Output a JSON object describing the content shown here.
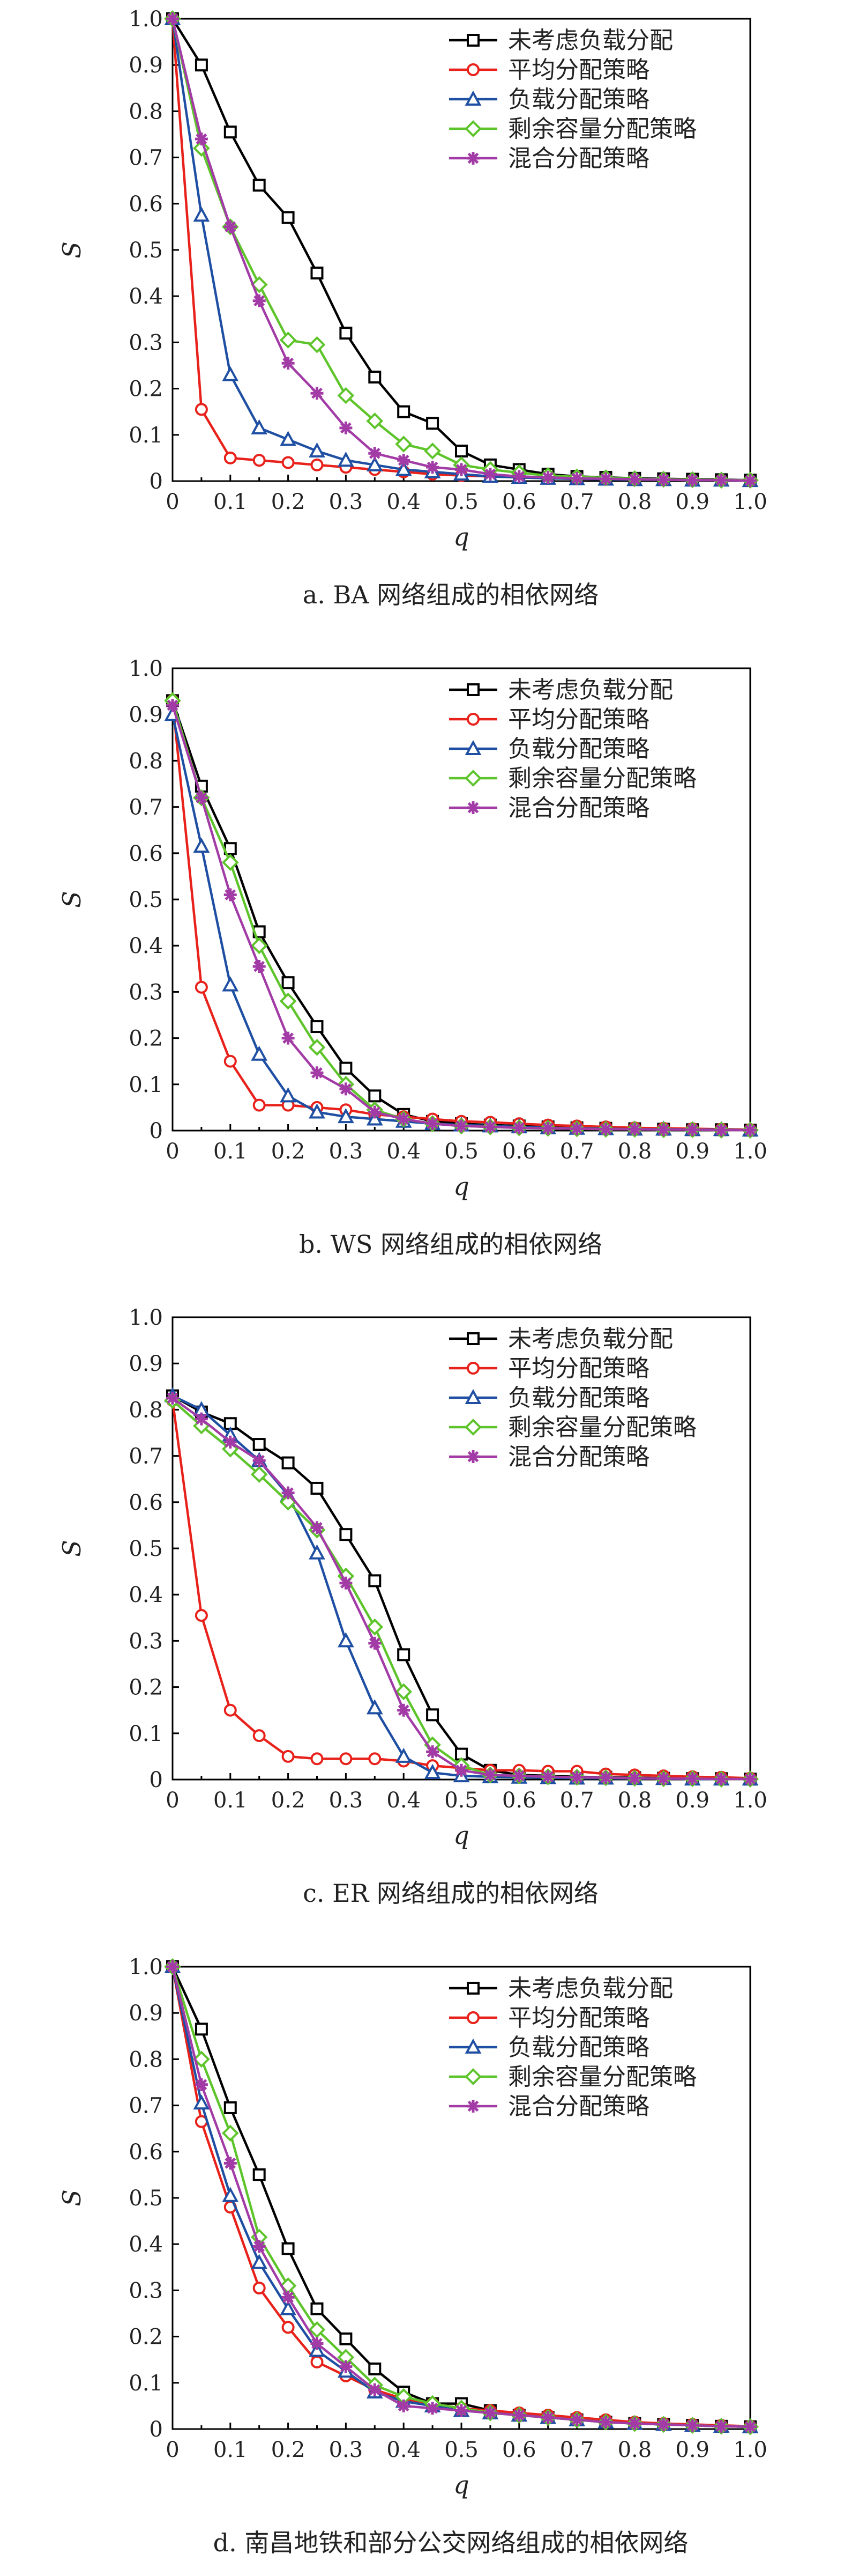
{
  "legend_labels": [
    "未考虑负载分配",
    "平均分配策略",
    "负载分配策略",
    "剩余容量分配策略",
    "混合分配策略"
  ],
  "series_styles": [
    {
      "color": "#000000",
      "marker": "square"
    },
    {
      "color": "#e8211b",
      "marker": "circle"
    },
    {
      "color": "#1f4fa3",
      "marker": "triangle"
    },
    {
      "color": "#5ec42b",
      "marker": "diamond"
    },
    {
      "color": "#a23ba6",
      "marker": "star"
    }
  ],
  "chart_data": [
    {
      "type": "line",
      "caption": "a. BA 网络组成的相依网络",
      "xlabel": "q",
      "ylabel": "S",
      "xlim": [
        0,
        1.0
      ],
      "ylim": [
        0,
        1.0
      ],
      "x_ticks": [
        "0",
        "0.1",
        "0.2",
        "0.3",
        "0.4",
        "0.5",
        "0.6",
        "0.7",
        "0.8",
        "0.9",
        "1.0"
      ],
      "y_ticks": [
        "0",
        "0.1",
        "0.2",
        "0.3",
        "0.4",
        "0.5",
        "0.6",
        "0.7",
        "0.8",
        "0.9",
        "1.0"
      ],
      "x": [
        0,
        0.05,
        0.1,
        0.15,
        0.2,
        0.25,
        0.3,
        0.35,
        0.4,
        0.45,
        0.5,
        0.55,
        0.6,
        0.65,
        0.7,
        0.75,
        0.8,
        0.85,
        0.9,
        0.95,
        1.0
      ],
      "series": [
        {
          "name": "未考虑负载分配",
          "values": [
            1.0,
            0.9,
            0.755,
            0.64,
            0.57,
            0.45,
            0.32,
            0.225,
            0.15,
            0.125,
            0.065,
            0.035,
            0.025,
            0.015,
            0.01,
            0.008,
            0.006,
            0.005,
            0.004,
            0.003,
            0.002
          ]
        },
        {
          "name": "平均分配策略",
          "values": [
            1.0,
            0.155,
            0.05,
            0.045,
            0.04,
            0.035,
            0.03,
            0.025,
            0.02,
            0.015,
            0.012,
            0.01,
            0.008,
            0.006,
            0.005,
            0.004,
            0.003,
            0.003,
            0.002,
            0.002,
            0.001
          ]
        },
        {
          "name": "负载分配策略",
          "values": [
            1.0,
            0.575,
            0.23,
            0.115,
            0.09,
            0.065,
            0.045,
            0.035,
            0.025,
            0.02,
            0.015,
            0.01,
            0.008,
            0.006,
            0.005,
            0.004,
            0.003,
            0.003,
            0.002,
            0.002,
            0.001
          ]
        },
        {
          "name": "剩余容量分配策略",
          "values": [
            1.0,
            0.72,
            0.55,
            0.425,
            0.305,
            0.295,
            0.185,
            0.13,
            0.08,
            0.065,
            0.035,
            0.025,
            0.018,
            0.012,
            0.009,
            0.007,
            0.005,
            0.004,
            0.003,
            0.002,
            0.002
          ]
        },
        {
          "name": "混合分配策略",
          "values": [
            1.0,
            0.74,
            0.55,
            0.39,
            0.255,
            0.19,
            0.115,
            0.06,
            0.045,
            0.03,
            0.025,
            0.015,
            0.01,
            0.008,
            0.006,
            0.005,
            0.004,
            0.003,
            0.002,
            0.002,
            0.001
          ]
        }
      ]
    },
    {
      "type": "line",
      "caption": "b. WS 网络组成的相依网络",
      "xlabel": "q",
      "ylabel": "S",
      "xlim": [
        0,
        1.0
      ],
      "ylim": [
        0,
        1.0
      ],
      "x_ticks": [
        "0",
        "0.1",
        "0.2",
        "0.3",
        "0.4",
        "0.5",
        "0.6",
        "0.7",
        "0.8",
        "0.9",
        "1.0"
      ],
      "y_ticks": [
        "0",
        "0.1",
        "0.2",
        "0.3",
        "0.4",
        "0.5",
        "0.6",
        "0.7",
        "0.8",
        "0.9",
        "1.0"
      ],
      "x": [
        0,
        0.05,
        0.1,
        0.15,
        0.2,
        0.25,
        0.3,
        0.35,
        0.4,
        0.45,
        0.5,
        0.55,
        0.6,
        0.65,
        0.7,
        0.75,
        0.8,
        0.85,
        0.9,
        0.95,
        1.0
      ],
      "series": [
        {
          "name": "未考虑负载分配",
          "values": [
            0.93,
            0.745,
            0.61,
            0.43,
            0.32,
            0.225,
            0.135,
            0.075,
            0.035,
            0.02,
            0.015,
            0.012,
            0.01,
            0.008,
            0.006,
            0.005,
            0.004,
            0.003,
            0.002,
            0.002,
            0.001
          ]
        },
        {
          "name": "平均分配策略",
          "values": [
            0.93,
            0.31,
            0.15,
            0.055,
            0.055,
            0.05,
            0.045,
            0.035,
            0.03,
            0.025,
            0.02,
            0.018,
            0.015,
            0.012,
            0.01,
            0.008,
            0.006,
            0.005,
            0.004,
            0.003,
            0.002
          ]
        },
        {
          "name": "负载分配策略",
          "values": [
            0.9,
            0.615,
            0.315,
            0.165,
            0.075,
            0.04,
            0.03,
            0.025,
            0.02,
            0.015,
            0.012,
            0.01,
            0.008,
            0.006,
            0.005,
            0.004,
            0.003,
            0.003,
            0.002,
            0.002,
            0.001
          ]
        },
        {
          "name": "剩余容量分配策略",
          "values": [
            0.93,
            0.72,
            0.58,
            0.4,
            0.28,
            0.18,
            0.1,
            0.045,
            0.025,
            0.015,
            0.01,
            0.008,
            0.006,
            0.005,
            0.004,
            0.003,
            0.003,
            0.002,
            0.002,
            0.001,
            0.001
          ]
        },
        {
          "name": "混合分配策略",
          "values": [
            0.92,
            0.72,
            0.51,
            0.355,
            0.2,
            0.125,
            0.09,
            0.04,
            0.025,
            0.015,
            0.01,
            0.008,
            0.006,
            0.005,
            0.004,
            0.003,
            0.003,
            0.002,
            0.002,
            0.001,
            0.001
          ]
        }
      ]
    },
    {
      "type": "line",
      "caption": "c. ER 网络组成的相依网络",
      "xlabel": "q",
      "ylabel": "S",
      "xlim": [
        0,
        1.0
      ],
      "ylim": [
        0,
        1.0
      ],
      "x_ticks": [
        "0",
        "0.1",
        "0.2",
        "0.3",
        "0.4",
        "0.5",
        "0.6",
        "0.7",
        "0.8",
        "0.9",
        "1.0"
      ],
      "y_ticks": [
        "0",
        "0.1",
        "0.2",
        "0.3",
        "0.4",
        "0.5",
        "0.6",
        "0.7",
        "0.8",
        "0.9",
        "1.0"
      ],
      "x": [
        0,
        0.05,
        0.1,
        0.15,
        0.2,
        0.25,
        0.3,
        0.35,
        0.4,
        0.45,
        0.5,
        0.55,
        0.6,
        0.65,
        0.7,
        0.75,
        0.8,
        0.85,
        0.9,
        0.95,
        1.0
      ],
      "series": [
        {
          "name": "未考虑负载分配",
          "values": [
            0.83,
            0.795,
            0.77,
            0.725,
            0.685,
            0.63,
            0.53,
            0.43,
            0.27,
            0.14,
            0.055,
            0.02,
            0.01,
            0.008,
            0.006,
            0.005,
            0.004,
            0.003,
            0.002,
            0.002,
            0.001
          ]
        },
        {
          "name": "平均分配策略",
          "values": [
            0.82,
            0.355,
            0.15,
            0.095,
            0.05,
            0.045,
            0.045,
            0.045,
            0.04,
            0.03,
            0.025,
            0.02,
            0.02,
            0.018,
            0.018,
            0.012,
            0.01,
            0.008,
            0.006,
            0.005,
            0.003
          ]
        },
        {
          "name": "负载分配策略",
          "values": [
            0.83,
            0.8,
            0.745,
            0.69,
            0.615,
            0.49,
            0.3,
            0.155,
            0.05,
            0.015,
            0.008,
            0.006,
            0.005,
            0.004,
            0.003,
            0.003,
            0.002,
            0.002,
            0.001,
            0.001,
            0.001
          ]
        },
        {
          "name": "剩余容量分配策略",
          "values": [
            0.82,
            0.765,
            0.715,
            0.66,
            0.6,
            0.54,
            0.44,
            0.33,
            0.19,
            0.075,
            0.03,
            0.01,
            0.008,
            0.006,
            0.005,
            0.004,
            0.003,
            0.002,
            0.002,
            0.001,
            0.001
          ]
        },
        {
          "name": "混合分配策略",
          "values": [
            0.825,
            0.78,
            0.73,
            0.69,
            0.62,
            0.545,
            0.425,
            0.295,
            0.15,
            0.06,
            0.02,
            0.01,
            0.008,
            0.006,
            0.005,
            0.004,
            0.003,
            0.002,
            0.002,
            0.001,
            0.001
          ]
        }
      ]
    },
    {
      "type": "line",
      "caption": "d. 南昌地铁和部分公交网络组成的相依网络",
      "xlabel": "q",
      "ylabel": "S",
      "xlim": [
        0,
        1.0
      ],
      "ylim": [
        0,
        1.0
      ],
      "x_ticks": [
        "0",
        "0.1",
        "0.2",
        "0.3",
        "0.4",
        "0.5",
        "0.6",
        "0.7",
        "0.8",
        "0.9",
        "1.0"
      ],
      "y_ticks": [
        "0",
        "0.1",
        "0.2",
        "0.3",
        "0.4",
        "0.5",
        "0.6",
        "0.7",
        "0.8",
        "0.9",
        "1.0"
      ],
      "x": [
        0,
        0.05,
        0.1,
        0.15,
        0.2,
        0.25,
        0.3,
        0.35,
        0.4,
        0.45,
        0.5,
        0.55,
        0.6,
        0.65,
        0.7,
        0.75,
        0.8,
        0.85,
        0.9,
        0.95,
        1.0
      ],
      "series": [
        {
          "name": "未考虑负载分配",
          "values": [
            1.0,
            0.865,
            0.695,
            0.55,
            0.39,
            0.26,
            0.195,
            0.13,
            0.08,
            0.055,
            0.055,
            0.04,
            0.03,
            0.025,
            0.02,
            0.015,
            0.012,
            0.01,
            0.008,
            0.006,
            0.005
          ]
        },
        {
          "name": "平均分配策略",
          "values": [
            1.0,
            0.665,
            0.48,
            0.305,
            0.22,
            0.145,
            0.115,
            0.085,
            0.065,
            0.055,
            0.045,
            0.04,
            0.035,
            0.03,
            0.025,
            0.02,
            0.015,
            0.012,
            0.01,
            0.008,
            0.006
          ]
        },
        {
          "name": "负载分配策略",
          "values": [
            1.0,
            0.705,
            0.505,
            0.36,
            0.26,
            0.17,
            0.125,
            0.08,
            0.06,
            0.05,
            0.04,
            0.035,
            0.03,
            0.025,
            0.02,
            0.015,
            0.012,
            0.01,
            0.008,
            0.006,
            0.005
          ]
        },
        {
          "name": "剩余容量分配策略",
          "values": [
            1.0,
            0.8,
            0.64,
            0.415,
            0.31,
            0.215,
            0.155,
            0.095,
            0.07,
            0.055,
            0.045,
            0.035,
            0.03,
            0.025,
            0.02,
            0.015,
            0.012,
            0.01,
            0.008,
            0.006,
            0.005
          ]
        },
        {
          "name": "混合分配策略",
          "values": [
            1.0,
            0.745,
            0.575,
            0.395,
            0.285,
            0.185,
            0.135,
            0.085,
            0.05,
            0.045,
            0.04,
            0.035,
            0.03,
            0.025,
            0.02,
            0.015,
            0.012,
            0.01,
            0.008,
            0.006,
            0.005
          ]
        }
      ]
    }
  ]
}
